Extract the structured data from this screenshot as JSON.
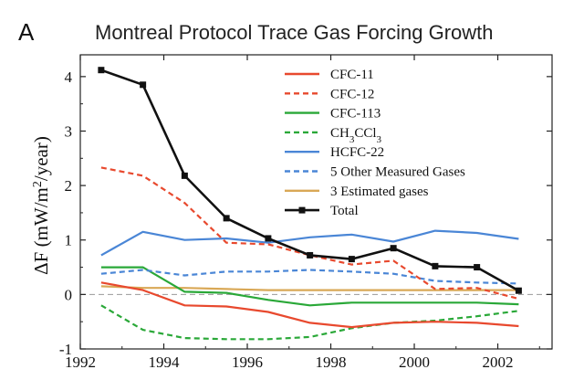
{
  "panel_label": "A",
  "chart_data": {
    "type": "line",
    "title": "Montreal Protocol Trace Gas Forcing Growth",
    "xlabel": "",
    "ylabel_parts": [
      "ΔF (mW/m",
      "2",
      "/year)"
    ],
    "xlim": [
      1992,
      2003.3
    ],
    "ylim": [
      -1,
      4.4
    ],
    "x_ticks": [
      1992,
      1994,
      1996,
      1998,
      2000,
      2002
    ],
    "y_ticks": [
      -1,
      0,
      1,
      2,
      3,
      4
    ],
    "zero_line": true,
    "legend_position": "top-right",
    "series": [
      {
        "name": "CFC-11",
        "legend_parts": [
          "CFC-11"
        ],
        "color": "#e8492e",
        "style": "solid",
        "x": [
          1992.5,
          1993.5,
          1994.5,
          1995.5,
          1996.5,
          1997.5,
          1998.5,
          1999.5,
          2000.5,
          2001.5,
          2002.5
        ],
        "y": [
          0.22,
          0.08,
          -0.2,
          -0.22,
          -0.32,
          -0.52,
          -0.6,
          -0.52,
          -0.5,
          -0.52,
          -0.58
        ]
      },
      {
        "name": "CFC-12",
        "legend_parts": [
          "CFC-12"
        ],
        "color": "#e8492e",
        "style": "dashed",
        "x": [
          1992.5,
          1993.5,
          1994.5,
          1995.5,
          1996.5,
          1997.5,
          1998.5,
          1999.5,
          2000.5,
          2001.5,
          2002.5
        ],
        "y": [
          2.33,
          2.18,
          1.68,
          0.95,
          0.92,
          0.72,
          0.55,
          0.62,
          0.1,
          0.12,
          -0.08
        ]
      },
      {
        "name": "CFC-113",
        "legend_parts": [
          "CFC-113"
        ],
        "color": "#2aa838",
        "style": "solid",
        "x": [
          1992.5,
          1993.5,
          1994.5,
          1995.5,
          1996.5,
          1997.5,
          1998.5,
          1999.5,
          2000.5,
          2001.5,
          2002.5
        ],
        "y": [
          0.5,
          0.5,
          0.05,
          0.03,
          -0.1,
          -0.2,
          -0.15,
          -0.15,
          -0.15,
          -0.15,
          -0.18
        ]
      },
      {
        "name": "CH3CCl3",
        "legend_parts": [
          "CH",
          "3",
          "CCl",
          "3"
        ],
        "color": "#2aa838",
        "style": "dashed",
        "x": [
          1992.5,
          1993.5,
          1994.5,
          1995.5,
          1996.5,
          1997.5,
          1998.5,
          1999.5,
          2000.5,
          2001.5,
          2002.5
        ],
        "y": [
          -0.2,
          -0.65,
          -0.8,
          -0.82,
          -0.82,
          -0.78,
          -0.62,
          -0.52,
          -0.48,
          -0.4,
          -0.3
        ]
      },
      {
        "name": "HCFC-22",
        "legend_parts": [
          "HCFC-22"
        ],
        "color": "#4a86d6",
        "style": "solid",
        "x": [
          1992.5,
          1993.5,
          1994.5,
          1995.5,
          1996.5,
          1997.5,
          1998.5,
          1999.5,
          2000.5,
          2001.5,
          2002.5
        ],
        "y": [
          0.72,
          1.15,
          1.0,
          1.03,
          0.95,
          1.05,
          1.1,
          0.97,
          1.17,
          1.13,
          1.02
        ]
      },
      {
        "name": "5 Other Measured Gases",
        "legend_parts": [
          "5 Other Measured Gases"
        ],
        "color": "#4a86d6",
        "style": "dashed",
        "x": [
          1992.5,
          1993.5,
          1994.5,
          1995.5,
          1996.5,
          1997.5,
          1998.5,
          1999.5,
          2000.5,
          2001.5,
          2002.5
        ],
        "y": [
          0.38,
          0.45,
          0.35,
          0.42,
          0.42,
          0.45,
          0.42,
          0.38,
          0.25,
          0.22,
          0.2
        ]
      },
      {
        "name": "3 Estimated gases",
        "legend_parts": [
          "3 Estimated gases"
        ],
        "color": "#d9a856",
        "style": "solid",
        "x": [
          1992.5,
          1993.5,
          1994.5,
          1995.5,
          1996.5,
          1997.5,
          1998.5,
          1999.5,
          2000.5,
          2001.5,
          2002.5
        ],
        "y": [
          0.15,
          0.12,
          0.12,
          0.1,
          0.08,
          0.08,
          0.08,
          0.08,
          0.08,
          0.08,
          0.08
        ]
      },
      {
        "name": "Total",
        "legend_parts": [
          "Total"
        ],
        "color": "#111111",
        "style": "solid-marker",
        "x": [
          1992.5,
          1993.5,
          1994.5,
          1995.5,
          1996.5,
          1997.5,
          1998.5,
          1999.5,
          2000.5,
          2001.5,
          2002.5
        ],
        "y": [
          4.12,
          3.85,
          2.18,
          1.4,
          1.03,
          0.72,
          0.65,
          0.85,
          0.52,
          0.5,
          0.07
        ]
      }
    ]
  }
}
